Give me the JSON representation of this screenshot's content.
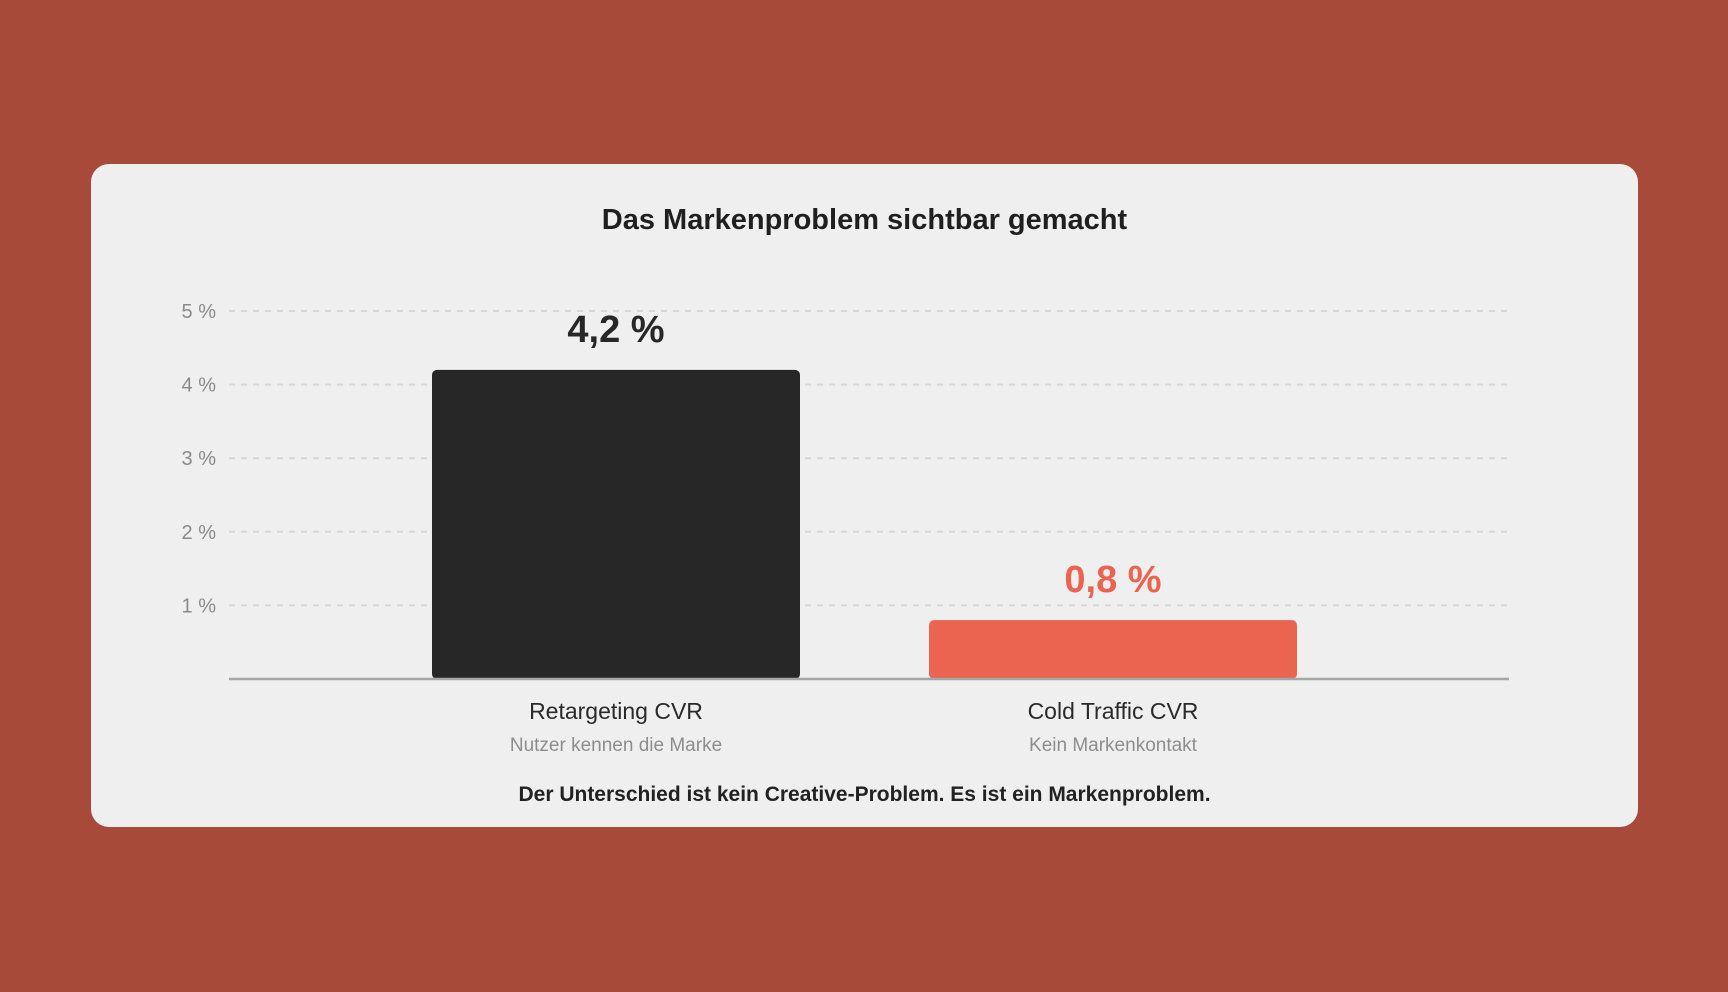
{
  "page": {
    "background_color": "#a84a3a",
    "card_color": "#efefef"
  },
  "chart_data": {
    "type": "bar",
    "title": "Das Markenproblem sichtbar gemacht",
    "categories": [
      "Retargeting CVR",
      "Cold Traffic CVR"
    ],
    "category_subtitles": [
      "Nutzer kennen die Marke",
      "Kein Markenkontakt"
    ],
    "values": [
      4.2,
      0.8
    ],
    "value_labels": [
      "4,2 %",
      "0,8 %"
    ],
    "bar_colors": [
      "#272727",
      "#eb6450"
    ],
    "label_colors": [
      "#272727",
      "#eb6450"
    ],
    "ylim": [
      0,
      5
    ],
    "yticks": [
      1,
      2,
      3,
      4,
      5
    ],
    "ytick_labels": [
      "1 %",
      "2 %",
      "3 %",
      "4 %",
      "5 %"
    ],
    "grid": true,
    "legend": "none"
  },
  "footnote": "Der Unterschied ist kein Creative-Problem. Es ist ein Markenproblem."
}
